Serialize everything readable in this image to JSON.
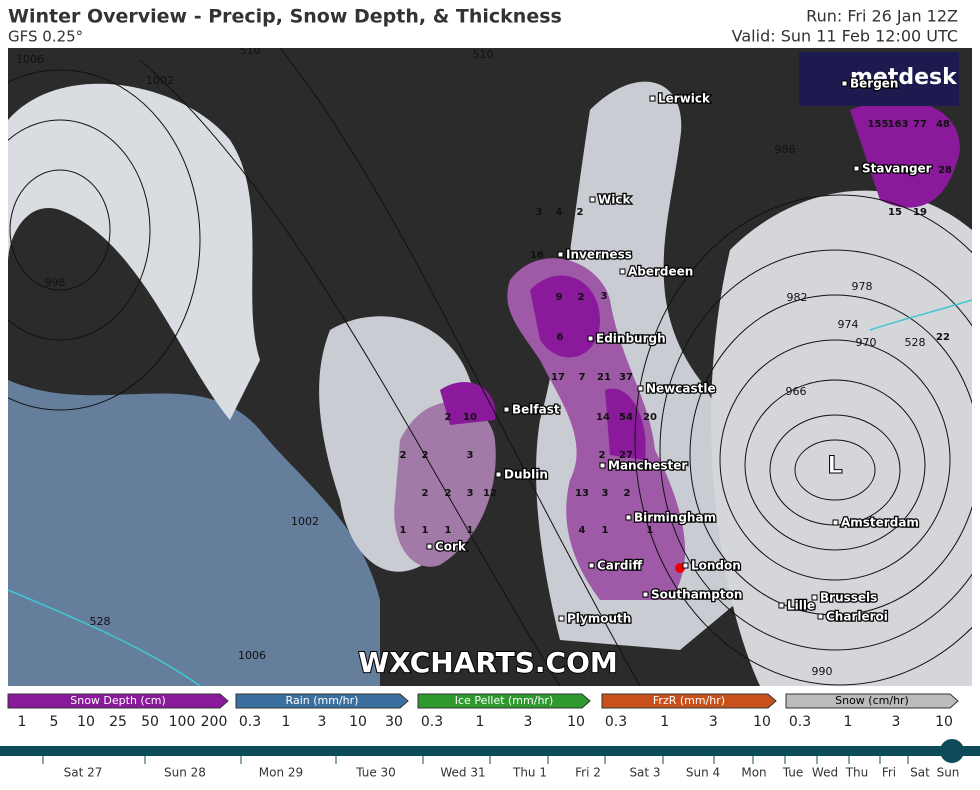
{
  "header": {
    "title": "Winter Overview - Precip, Snow Depth, & Thickness",
    "model": "GFS 0.25°",
    "run": "Run: Fri 26 Jan 12Z",
    "valid": "Valid: Sun 11 Feb 12:00 UTC"
  },
  "map": {
    "watermark": "WXCHARTS.COM",
    "logo": "metdesk",
    "low": "L",
    "cities": [
      "Lerwick",
      "Wick",
      "Inverness",
      "Aberdeen",
      "Edinburgh",
      "Newcastle",
      "Belfast",
      "Dublin",
      "Manchester",
      "Birmingham",
      "Cork",
      "Cardiff",
      "London",
      "Southampton",
      "Plymouth",
      "Amsterdam",
      "Brussels",
      "Lille",
      "Charleroi",
      "Stavanger",
      "Bergen"
    ],
    "isobar_labels": [
      "1006",
      "1002",
      "998",
      "1002",
      "1006",
      "986",
      "982",
      "978",
      "974",
      "970",
      "966",
      "990",
      "510",
      "510",
      "528",
      "528"
    ],
    "snow_depths": [
      "3",
      "4",
      "2",
      "16",
      "9",
      "2",
      "3",
      "6",
      "17",
      "7",
      "21",
      "37",
      "14",
      "54",
      "20",
      "27",
      "13",
      "3",
      "2",
      "4",
      "1",
      "1",
      "2",
      "10",
      "2",
      "2",
      "3",
      "12",
      "2",
      "2",
      "3",
      "1",
      "1",
      "1",
      "1",
      "2",
      "155",
      "163",
      "77",
      "48",
      "15",
      "19",
      "28",
      "22"
    ]
  },
  "legend": [
    {
      "title": "Snow Depth (cm)",
      "ticks": [
        1,
        5,
        10,
        25,
        50,
        100,
        200
      ],
      "color": "#8a1a9b"
    },
    {
      "title": "Rain (mm/hr)",
      "ticks": [
        0.3,
        1,
        3,
        10,
        30
      ],
      "color": "#3b6fa0"
    },
    {
      "title": "Ice Pellet (mm/hr)",
      "ticks": [
        0.3,
        1,
        3,
        10
      ],
      "color": "#2e9a2e"
    },
    {
      "title": "FrzR (mm/hr)",
      "ticks": [
        0.3,
        1,
        3,
        10
      ],
      "color": "#c8501a"
    },
    {
      "title": "Snow (cm/hr)",
      "ticks": [
        0.3,
        1,
        3,
        10
      ],
      "color": "#bbbbbb"
    }
  ],
  "timeline": [
    "Sat 27",
    "Sun 28",
    "Mon 29",
    "Tue 30",
    "Wed 31",
    "Thu 1",
    "Fri 2",
    "Sat 3",
    "Sun 4",
    "Mon",
    "Tue",
    "Wed",
    "Thu",
    "Fri",
    "Sat",
    "Sun"
  ]
}
